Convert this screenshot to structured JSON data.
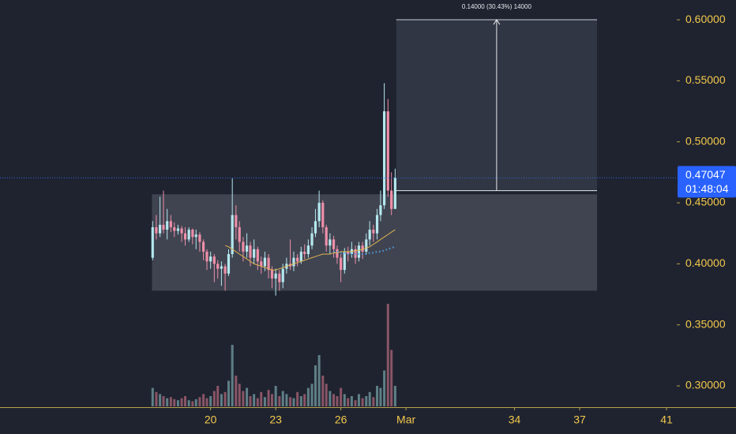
{
  "chart_data": {
    "type": "candlestick",
    "x": [
      17.33,
      17.5,
      17.67,
      17.83,
      18,
      18.17,
      18.33,
      18.5,
      18.67,
      18.83,
      19,
      19.17,
      19.33,
      19.5,
      19.67,
      19.83,
      20,
      20.17,
      20.33,
      20.5,
      20.67,
      20.83,
      21,
      21.17,
      21.33,
      21.5,
      21.67,
      21.83,
      22,
      22.17,
      22.33,
      22.5,
      22.67,
      22.83,
      23,
      23.17,
      23.33,
      23.5,
      23.67,
      23.83,
      24,
      24.17,
      24.33,
      24.5,
      24.67,
      24.83,
      25,
      25.17,
      25.33,
      25.5,
      25.67,
      25.83,
      26,
      26.17,
      26.33,
      26.5,
      26.67,
      26.83,
      27,
      27.17,
      27.33,
      27.5,
      27.67,
      27.83,
      28,
      28.17,
      28.33,
      28.5
    ],
    "open": [
      0.405,
      0.43,
      0.425,
      0.432,
      0.428,
      0.435,
      0.43,
      0.427,
      0.429,
      0.425,
      0.42,
      0.428,
      0.422,
      0.424,
      0.418,
      0.41,
      0.402,
      0.406,
      0.4,
      0.396,
      0.398,
      0.392,
      0.408,
      0.44,
      0.43,
      0.418,
      0.41,
      0.415,
      0.405,
      0.412,
      0.402,
      0.398,
      0.405,
      0.395,
      0.388,
      0.392,
      0.385,
      0.396,
      0.4,
      0.398,
      0.405,
      0.402,
      0.41,
      0.408,
      0.415,
      0.425,
      0.435,
      0.45,
      0.43,
      0.415,
      0.42,
      0.412,
      0.405,
      0.395,
      0.41,
      0.408,
      0.412,
      0.405,
      0.415,
      0.41,
      0.42,
      0.428,
      0.425,
      0.44,
      0.448,
      0.525,
      0.46,
      0.445
    ],
    "high": [
      0.435,
      0.44,
      0.455,
      0.46,
      0.445,
      0.44,
      0.434,
      0.432,
      0.431,
      0.43,
      0.43,
      0.429,
      0.428,
      0.426,
      0.42,
      0.412,
      0.41,
      0.408,
      0.403,
      0.402,
      0.4,
      0.412,
      0.47,
      0.448,
      0.435,
      0.422,
      0.425,
      0.418,
      0.42,
      0.414,
      0.406,
      0.41,
      0.408,
      0.398,
      0.396,
      0.395,
      0.4,
      0.405,
      0.42,
      0.41,
      0.408,
      0.414,
      0.416,
      0.42,
      0.43,
      0.445,
      0.46,
      0.452,
      0.432,
      0.425,
      0.423,
      0.415,
      0.408,
      0.413,
      0.414,
      0.418,
      0.415,
      0.418,
      0.418,
      0.425,
      0.435,
      0.432,
      0.445,
      0.46,
      0.548,
      0.535,
      0.475,
      0.478
    ],
    "low": [
      0.403,
      0.42,
      0.422,
      0.425,
      0.42,
      0.426,
      0.422,
      0.424,
      0.418,
      0.415,
      0.418,
      0.416,
      0.412,
      0.41,
      0.403,
      0.395,
      0.396,
      0.385,
      0.388,
      0.382,
      0.378,
      0.39,
      0.405,
      0.42,
      0.41,
      0.402,
      0.405,
      0.398,
      0.4,
      0.395,
      0.392,
      0.394,
      0.388,
      0.38,
      0.374,
      0.378,
      0.38,
      0.392,
      0.395,
      0.394,
      0.398,
      0.4,
      0.404,
      0.405,
      0.412,
      0.422,
      0.43,
      0.425,
      0.41,
      0.408,
      0.405,
      0.4,
      0.385,
      0.392,
      0.402,
      0.405,
      0.4,
      0.402,
      0.404,
      0.408,
      0.415,
      0.418,
      0.42,
      0.435,
      0.445,
      0.455,
      0.44,
      0.445
    ],
    "close": [
      0.43,
      0.425,
      0.432,
      0.428,
      0.435,
      0.43,
      0.427,
      0.429,
      0.425,
      0.42,
      0.428,
      0.422,
      0.424,
      0.418,
      0.41,
      0.402,
      0.406,
      0.4,
      0.396,
      0.398,
      0.392,
      0.408,
      0.44,
      0.43,
      0.418,
      0.41,
      0.415,
      0.405,
      0.412,
      0.402,
      0.398,
      0.405,
      0.395,
      0.388,
      0.392,
      0.385,
      0.396,
      0.4,
      0.398,
      0.405,
      0.402,
      0.41,
      0.408,
      0.415,
      0.425,
      0.435,
      0.45,
      0.43,
      0.415,
      0.42,
      0.412,
      0.405,
      0.395,
      0.41,
      0.408,
      0.412,
      0.405,
      0.415,
      0.41,
      0.42,
      0.428,
      0.425,
      0.44,
      0.448,
      0.525,
      0.46,
      0.445,
      0.47047
    ],
    "volume": [
      18,
      14,
      12,
      10,
      8,
      9,
      7,
      6,
      8,
      10,
      6,
      5,
      7,
      9,
      12,
      8,
      10,
      15,
      20,
      12,
      14,
      25,
      60,
      30,
      22,
      15,
      18,
      10,
      12,
      8,
      14,
      9,
      16,
      12,
      20,
      10,
      15,
      12,
      9,
      8,
      14,
      10,
      12,
      18,
      22,
      40,
      50,
      30,
      22,
      15,
      12,
      10,
      18,
      12,
      8,
      10,
      6,
      12,
      8,
      10,
      14,
      9,
      20,
      18,
      35,
      100,
      55,
      20
    ],
    "up_color": "#b4e8ee",
    "down_color": "#ee8fa8",
    "volume_up_color": "#5f7f86",
    "volume_down_color": "#8a5566",
    "overlays": [
      {
        "color": "#e0b450",
        "style": "solid",
        "values": [
          null,
          null,
          null,
          null,
          null,
          null,
          null,
          null,
          null,
          null,
          null,
          null,
          null,
          null,
          null,
          null,
          null,
          null,
          null,
          null,
          0.415,
          0.414,
          0.412,
          0.41,
          0.408,
          0.406,
          0.404,
          0.402,
          0.4,
          0.399,
          0.398,
          0.397,
          0.396,
          0.395,
          0.395,
          0.396,
          0.397,
          0.398,
          0.399,
          0.4,
          0.401,
          0.402,
          0.403,
          0.404,
          0.405,
          0.406,
          0.407,
          0.408,
          0.408,
          0.408,
          0.409,
          0.409,
          0.41,
          0.41,
          0.41,
          0.41,
          0.411,
          0.411,
          0.412,
          0.413,
          0.414,
          0.416,
          0.418,
          0.42,
          0.422,
          0.424,
          0.426,
          0.428
        ]
      },
      {
        "color": "#4fa3e8",
        "style": "dotted",
        "values": [
          null,
          null,
          null,
          null,
          null,
          null,
          null,
          null,
          null,
          null,
          null,
          null,
          null,
          null,
          null,
          null,
          null,
          null,
          null,
          null,
          null,
          null,
          null,
          null,
          null,
          null,
          null,
          null,
          null,
          null,
          null,
          null,
          null,
          null,
          null,
          null,
          null,
          null,
          null,
          null,
          null,
          null,
          null,
          null,
          null,
          null,
          null,
          null,
          null,
          null,
          0.41,
          0.41,
          0.409,
          0.409,
          0.408,
          0.408,
          0.408,
          0.408,
          0.408,
          0.408,
          0.409,
          0.409,
          0.41,
          0.41,
          0.411,
          0.412,
          0.413,
          0.414
        ]
      }
    ],
    "range_box": {
      "x": [
        17.3,
        37.8
      ],
      "y": [
        0.378,
        0.457
      ]
    },
    "long_position": {
      "x": [
        28.55,
        37.8
      ],
      "entry": 0.46,
      "target": 0.6,
      "label": "0.14000 (30.43%) 14000"
    },
    "last_price": 0.47047,
    "countdown": "01:48:04",
    "xlim": [
      10.3,
      41.4
    ],
    "xticks": [
      20,
      23,
      26,
      {
        "value": 29,
        "label": "Mar"
      },
      34,
      37,
      41
    ],
    "ylim": [
      0.2832,
      0.6162
    ],
    "yticks": [
      {
        "value": 0.3,
        "label": "0.30000"
      },
      {
        "value": 0.35,
        "label": "0.35000"
      },
      {
        "value": 0.4,
        "label": "0.40000"
      },
      {
        "value": 0.45,
        "label": "0.45000"
      },
      {
        "value": 0.5,
        "label": "0.50000"
      },
      {
        "value": 0.55,
        "label": "0.55000"
      },
      {
        "value": 0.6,
        "label": "0.60000"
      }
    ]
  }
}
